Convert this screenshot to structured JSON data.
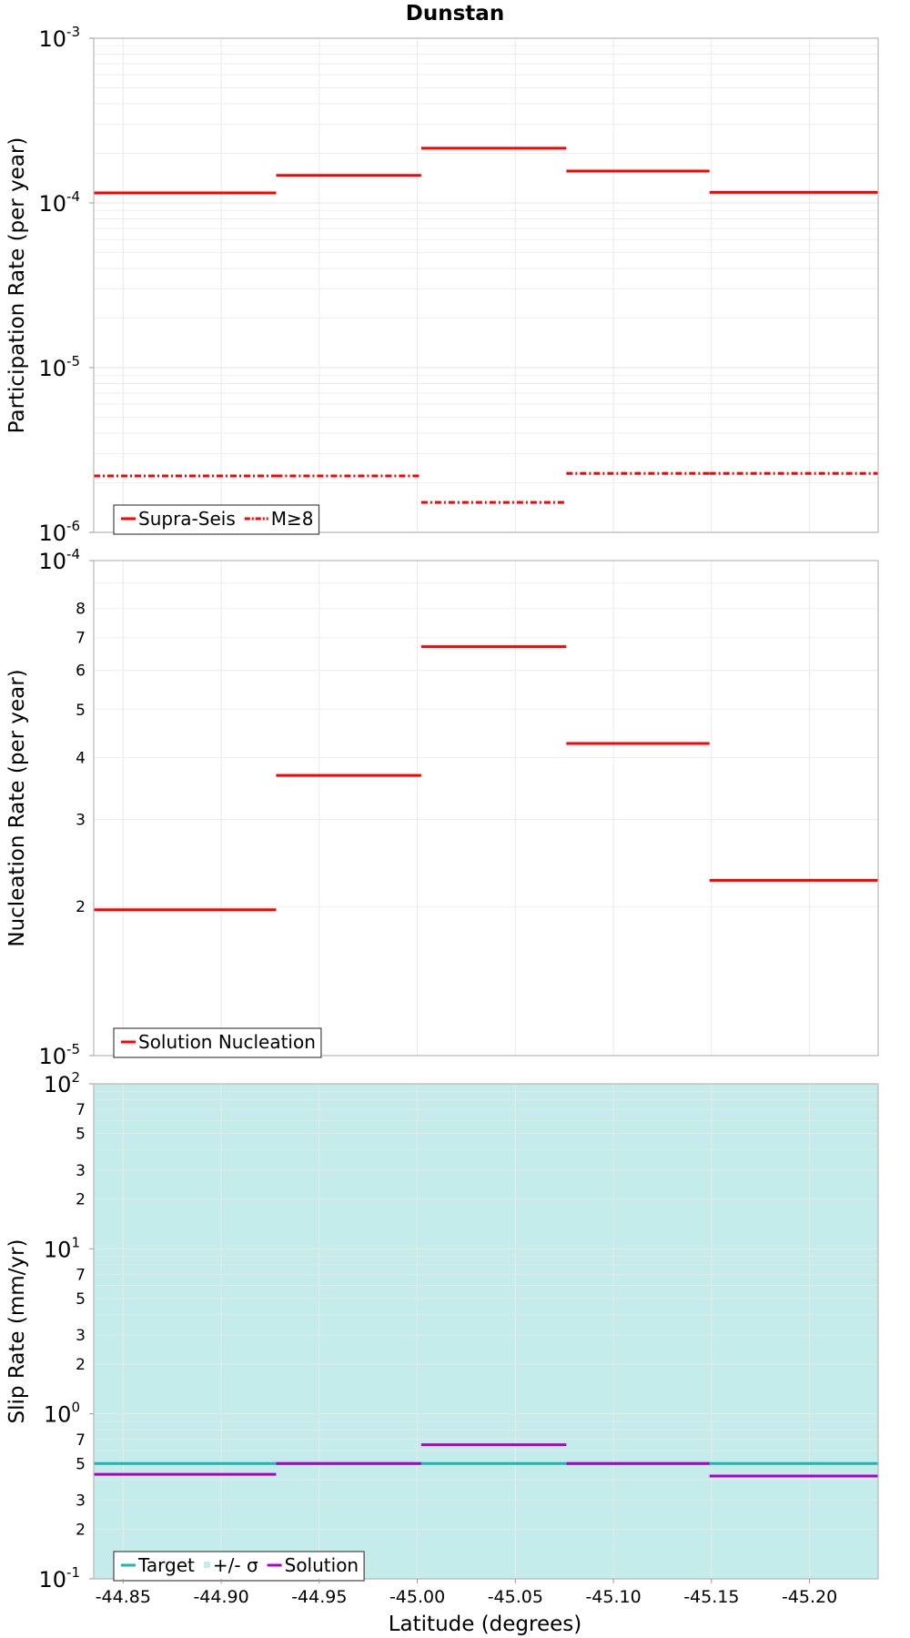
{
  "title": "Dunstan",
  "xlabel": "Latitude (degrees)",
  "colors": {
    "red": "#ff0000",
    "cyan": "#1fb5b0",
    "magenta": "#b000c8",
    "band": "#c3ecea",
    "grid": "#e9e9e9"
  },
  "chart_data": [
    {
      "type": "line",
      "panel": "participation",
      "ylabel": "Participation Rate (per year)",
      "yscale": "log",
      "ylim": [
        1e-06,
        0.001
      ],
      "xlim": [
        -44.835,
        -45.235
      ],
      "xticks": [
        -44.85,
        -44.9,
        -44.95,
        -45.0,
        -45.05,
        -45.1,
        -45.15,
        -45.2
      ],
      "xtick_labels": [
        "-44.85",
        "-44.90",
        "-44.95",
        "-45.00",
        "-45.05",
        "-45.10",
        "-45.15",
        "-45.20"
      ],
      "major_ticks": [
        {
          "v": 0.001,
          "base": "10",
          "exp": "-3"
        },
        {
          "v": 0.0001,
          "base": "10",
          "exp": "-4"
        },
        {
          "v": 1e-05,
          "base": "10",
          "exp": "-5"
        },
        {
          "v": 1e-06,
          "base": "10",
          "exp": "-6"
        }
      ],
      "minor_labels": [],
      "legend": [
        "Supra-Seis",
        "M≥8"
      ],
      "series": [
        {
          "name": "Supra-Seis",
          "style": "solid",
          "color": "#ff0000",
          "segments": [
            {
              "x0": -44.835,
              "x1": -44.928,
              "y": 0.000115
            },
            {
              "x0": -44.928,
              "x1": -45.002,
              "y": 0.000147
            },
            {
              "x0": -45.002,
              "x1": -45.076,
              "y": 0.000215
            },
            {
              "x0": -45.076,
              "x1": -45.149,
              "y": 0.000156
            },
            {
              "x0": -45.149,
              "x1": -45.235,
              "y": 0.000116
            }
          ]
        },
        {
          "name": "M≥8",
          "style": "dashdot",
          "color": "#ff0000",
          "segments": [
            {
              "x0": -44.835,
              "x1": -44.928,
              "y": 2.2e-06
            },
            {
              "x0": -44.928,
              "x1": -45.002,
              "y": 2.2e-06
            },
            {
              "x0": -45.002,
              "x1": -45.076,
              "y": 1.52e-06
            },
            {
              "x0": -45.076,
              "x1": -45.149,
              "y": 2.28e-06
            },
            {
              "x0": -45.149,
              "x1": -45.235,
              "y": 2.28e-06
            }
          ]
        }
      ]
    },
    {
      "type": "line",
      "panel": "nucleation",
      "ylabel": "Nucleation Rate (per year)",
      "yscale": "log",
      "ylim": [
        1e-05,
        0.0001
      ],
      "major_ticks": [
        {
          "v": 0.0001,
          "base": "10",
          "exp": "-4"
        },
        {
          "v": 1e-05,
          "base": "10",
          "exp": "-5"
        }
      ],
      "minor_labels": [
        {
          "v": 8e-05,
          "label": "8"
        },
        {
          "v": 7e-05,
          "label": "7"
        },
        {
          "v": 6e-05,
          "label": "6"
        },
        {
          "v": 5e-05,
          "label": "5"
        },
        {
          "v": 4e-05,
          "label": "4"
        },
        {
          "v": 3e-05,
          "label": "3"
        },
        {
          "v": 2e-05,
          "label": "2"
        }
      ],
      "legend": [
        "Solution Nucleation"
      ],
      "series": [
        {
          "name": "Solution Nucleation",
          "style": "solid",
          "color": "#ff0000",
          "segments": [
            {
              "x0": -44.835,
              "x1": -44.928,
              "y": 1.97e-05
            },
            {
              "x0": -44.928,
              "x1": -45.002,
              "y": 3.68e-05
            },
            {
              "x0": -45.002,
              "x1": -45.076,
              "y": 6.7e-05
            },
            {
              "x0": -45.076,
              "x1": -45.149,
              "y": 4.27e-05
            },
            {
              "x0": -45.149,
              "x1": -45.235,
              "y": 2.26e-05
            }
          ]
        }
      ]
    },
    {
      "type": "line",
      "panel": "slip",
      "ylabel": "Slip Rate (mm/yr)",
      "yscale": "log",
      "ylim": [
        0.1,
        100
      ],
      "major_ticks": [
        {
          "v": 100,
          "base": "10",
          "exp": "2"
        },
        {
          "v": 10,
          "base": "10",
          "exp": "1"
        },
        {
          "v": 1,
          "base": "10",
          "exp": "0"
        },
        {
          "v": 0.1,
          "base": "10",
          "exp": "-1"
        }
      ],
      "minor_labels": [
        {
          "v": 70,
          "label": "7"
        },
        {
          "v": 50,
          "label": "5"
        },
        {
          "v": 30,
          "label": "3"
        },
        {
          "v": 20,
          "label": "2"
        },
        {
          "v": 7,
          "label": "7"
        },
        {
          "v": 5,
          "label": "5"
        },
        {
          "v": 3,
          "label": "3"
        },
        {
          "v": 2,
          "label": "2"
        },
        {
          "v": 0.7,
          "label": "7"
        },
        {
          "v": 0.5,
          "label": "5"
        },
        {
          "v": 0.3,
          "label": "3"
        },
        {
          "v": 0.2,
          "label": "2"
        }
      ],
      "band": {
        "name": "+/- σ",
        "ymin": 0.1,
        "ymax": 100
      },
      "legend": [
        "Target",
        "+/- σ",
        "Solution"
      ],
      "series": [
        {
          "name": "Target",
          "style": "solid",
          "color": "#1fb5b0",
          "segments": [
            {
              "x0": -44.835,
              "x1": -44.928,
              "y": 0.5
            },
            {
              "x0": -44.928,
              "x1": -45.002,
              "y": 0.5
            },
            {
              "x0": -45.002,
              "x1": -45.076,
              "y": 0.5
            },
            {
              "x0": -45.076,
              "x1": -45.149,
              "y": 0.5
            },
            {
              "x0": -45.149,
              "x1": -45.235,
              "y": 0.5
            }
          ]
        },
        {
          "name": "Solution",
          "style": "solid",
          "color": "#b000c8",
          "segments": [
            {
              "x0": -44.835,
              "x1": -44.928,
              "y": 0.43
            },
            {
              "x0": -44.928,
              "x1": -45.002,
              "y": 0.5
            },
            {
              "x0": -45.002,
              "x1": -45.076,
              "y": 0.65
            },
            {
              "x0": -45.076,
              "x1": -45.149,
              "y": 0.5
            },
            {
              "x0": -45.149,
              "x1": -45.235,
              "y": 0.42
            }
          ]
        }
      ]
    }
  ]
}
